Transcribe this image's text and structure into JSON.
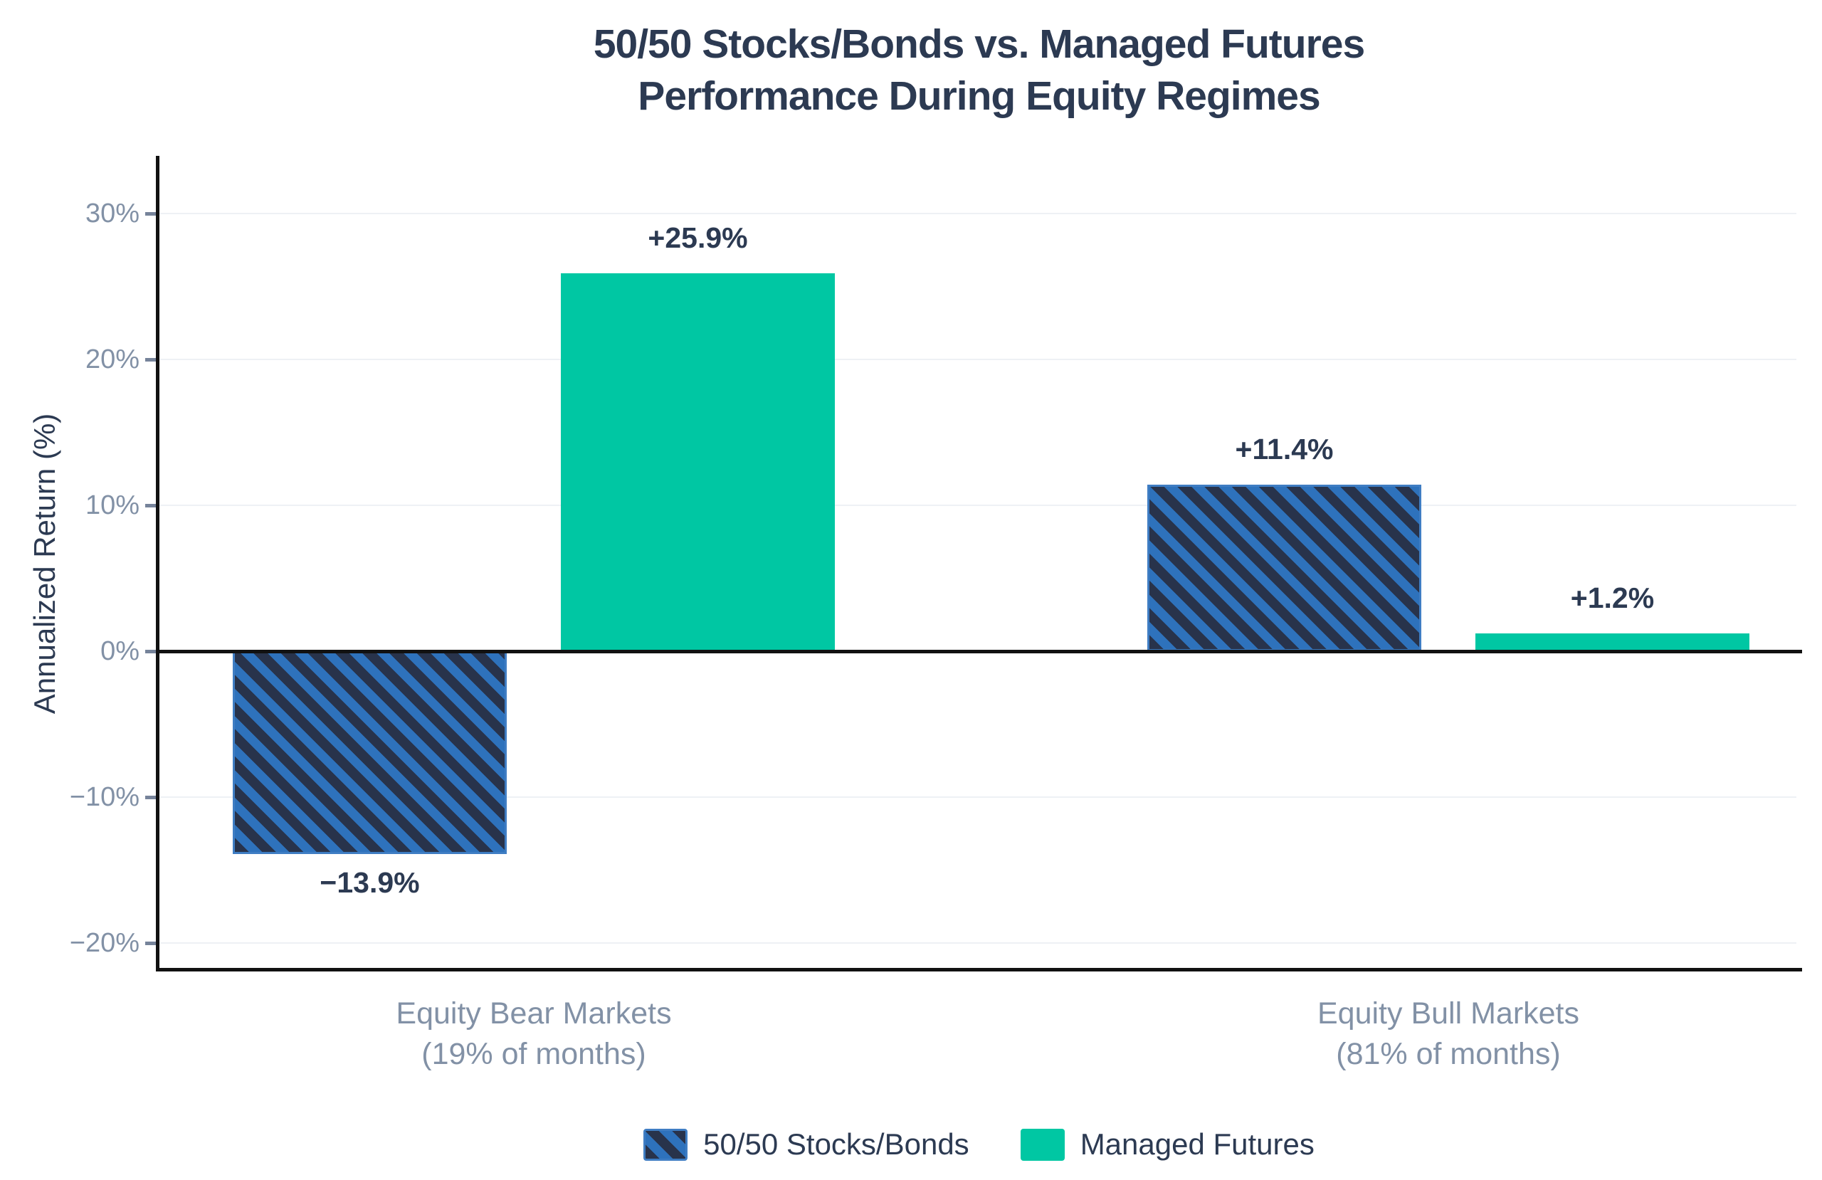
{
  "page": {
    "background": "#ffffff"
  },
  "colors": {
    "ink": "#2c3a52",
    "muted": "#8291a6",
    "axis": "#111111",
    "tickmark": "#76839a",
    "gridline": "#eef1f5",
    "teal": "#00c7a3",
    "hatch_background": "#28334b",
    "hatch_stripe": "#2e72bc",
    "hatch_edge": "#3f7dc3"
  },
  "chart_data": {
    "type": "bar",
    "title_lines": [
      "50/50 Stocks/Bonds vs. Managed Futures",
      "Performance During Equity Regimes"
    ],
    "ylabel": "Annualized Return (%)",
    "categories": [
      {
        "label_line1": "Equity Bear Markets",
        "label_line2": "(19% of months)"
      },
      {
        "label_line1": "Equity Bull Markets",
        "label_line2": "(81% of months)"
      }
    ],
    "series": [
      {
        "name": "50/50 Stocks/Bonds",
        "style": "hatched",
        "values": [
          -13.9,
          11.4
        ],
        "data_labels": [
          "−13.9%",
          "+11.4%"
        ]
      },
      {
        "name": "Managed Futures",
        "style": "solid",
        "values": [
          25.9,
          1.2
        ],
        "data_labels": [
          "+25.9%",
          "+1.2%"
        ]
      }
    ],
    "y_axis": {
      "tick_values": [
        30,
        20,
        10,
        0,
        -10,
        -20
      ],
      "tick_labels": [
        "30%",
        "20%",
        "10%",
        "0%",
        "−10%",
        "−20%"
      ],
      "ylim": [
        -21.8,
        34
      ],
      "grid": true
    },
    "legend_position": "bottom-center"
  }
}
